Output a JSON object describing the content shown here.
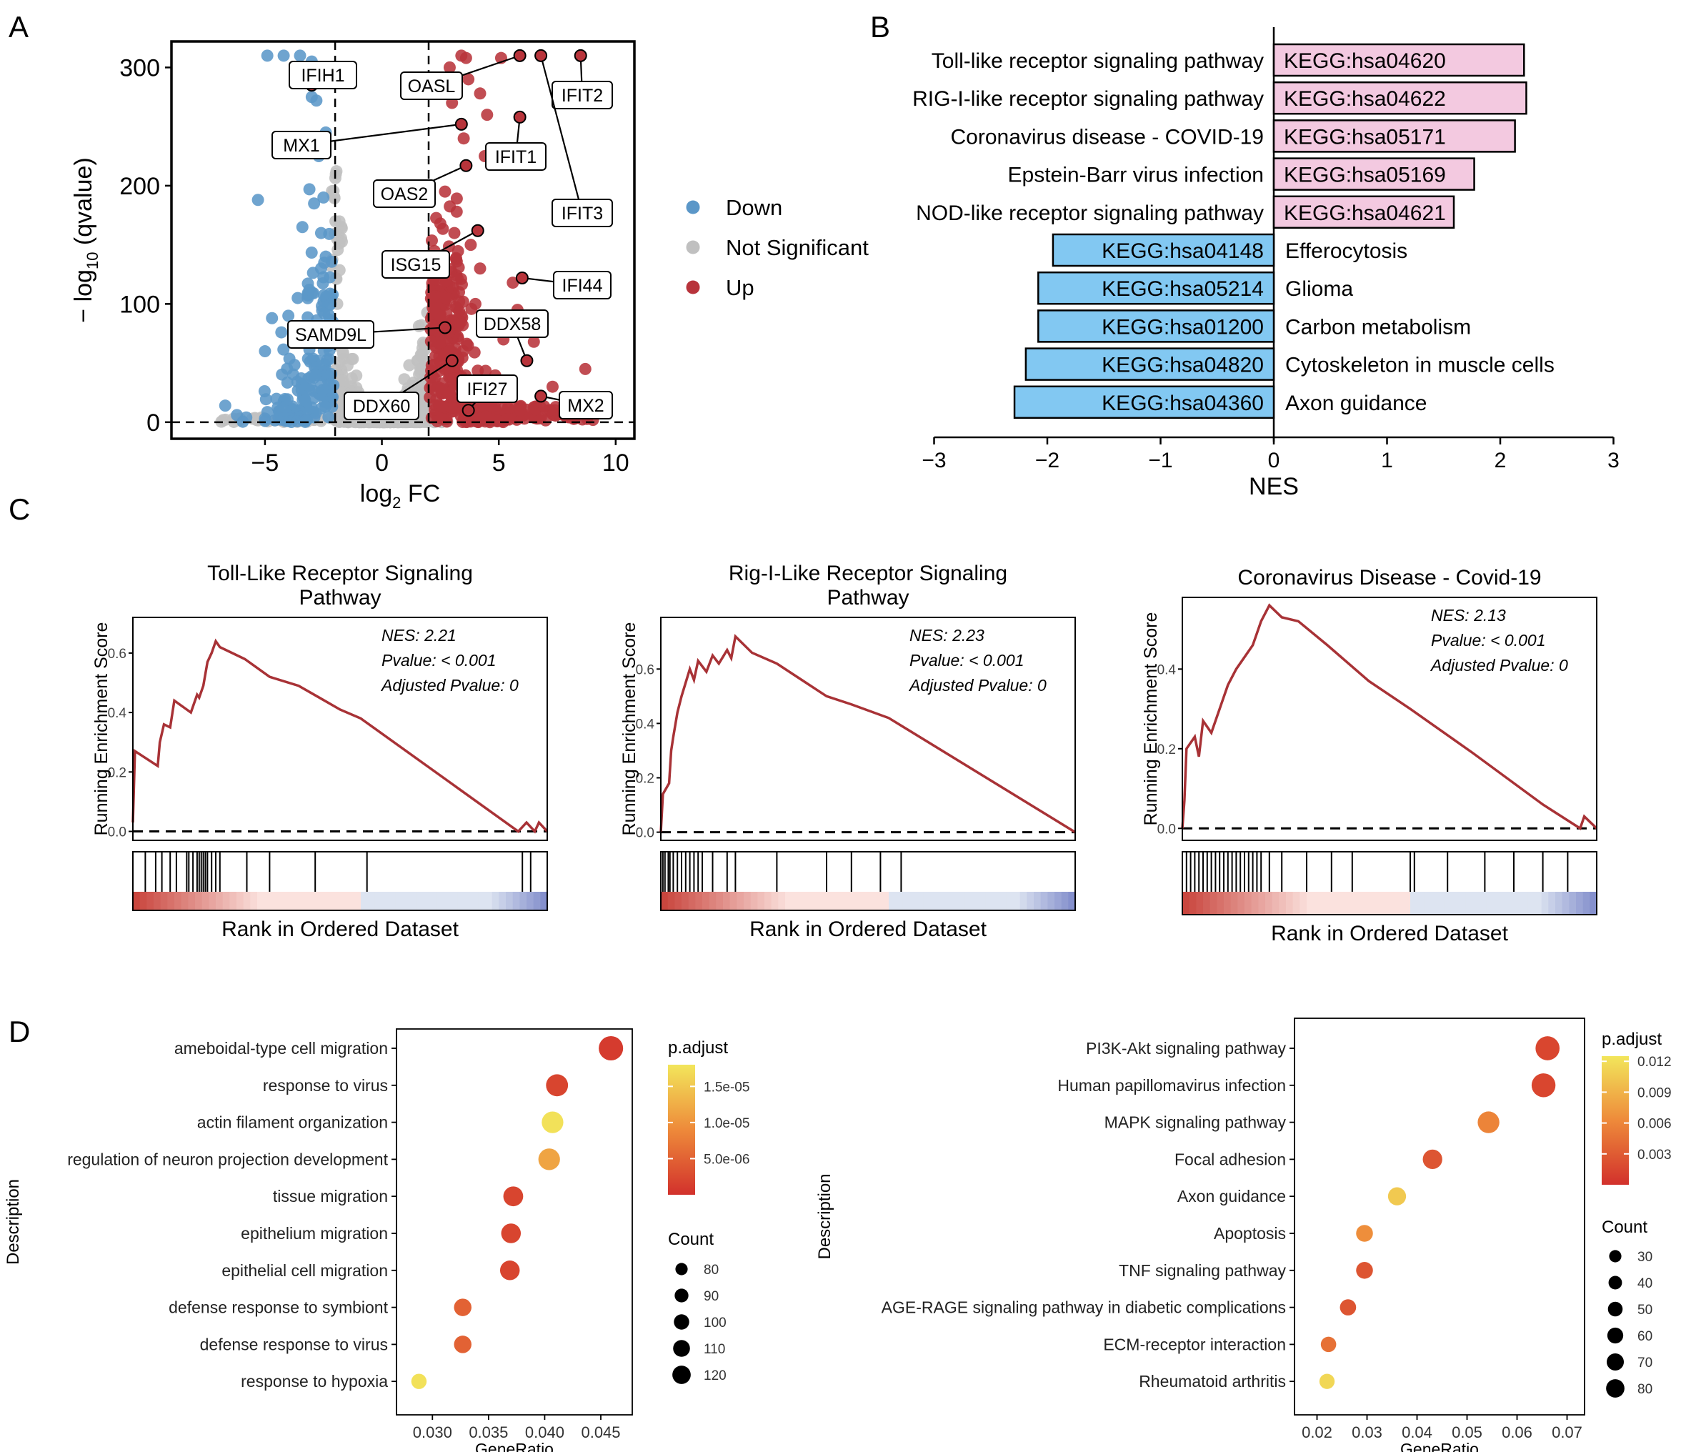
{
  "panel_labels": [
    "A",
    "B",
    "C",
    "D"
  ],
  "colors": {
    "down": "#5b97c8",
    "ns": "#c0c0c0",
    "up": "#b8343b",
    "kegg_pos": "#f3c9e0",
    "kegg_neg": "#82c8f2",
    "gsea_line": "#a83236",
    "heat_red": "#d2312c",
    "heat_yellow": "#f2e65b"
  },
  "chart_data": [
    {
      "id": "A",
      "type": "scatter",
      "xlabel": "log2 FC",
      "xlabel_base": "log",
      "xlabel_sub": "2",
      "xlabel_tail": " FC",
      "ylabel": "−log10 (qvalue)",
      "ylabel_head": "− log",
      "ylabel_sub": "10",
      "ylabel_tail": " (qvalue)",
      "xlim": [
        -9,
        10.8
      ],
      "ylim": [
        -14,
        322
      ],
      "xticks": [
        -5,
        0,
        5,
        10
      ],
      "yticks": [
        0,
        100,
        200,
        300
      ],
      "thresholds": {
        "x": [
          -2,
          2
        ],
        "y": 0
      },
      "legend": [
        {
          "key": "down",
          "label": "Down"
        },
        {
          "key": "ns",
          "label": "Not Significant"
        },
        {
          "key": "up",
          "label": "Up"
        }
      ],
      "labeled_points": [
        {
          "gene": "IFIH1",
          "x": -3.0,
          "y": 285
        },
        {
          "gene": "OASL",
          "x": 5.9,
          "y": 310
        },
        {
          "gene": "IFIT2",
          "x": 8.5,
          "y": 310
        },
        {
          "gene": "MX1",
          "x": 3.4,
          "y": 252
        },
        {
          "gene": "IFIT1",
          "x": 5.9,
          "y": 258
        },
        {
          "gene": "OAS2",
          "x": 3.6,
          "y": 217
        },
        {
          "gene": "IFIT3",
          "x": 6.8,
          "y": 310
        },
        {
          "gene": "ISG15",
          "x": 4.1,
          "y": 162
        },
        {
          "gene": "IFI44",
          "x": 6.0,
          "y": 122
        },
        {
          "gene": "SAMD9L",
          "x": 2.7,
          "y": 80
        },
        {
          "gene": "DDX58",
          "x": 6.2,
          "y": 52
        },
        {
          "gene": "DDX60",
          "x": 3.0,
          "y": 52
        },
        {
          "gene": "IFI27",
          "x": 3.7,
          "y": 10
        },
        {
          "gene": "MX2",
          "x": 6.8,
          "y": 22
        }
      ]
    },
    {
      "id": "B",
      "type": "bar",
      "xlabel": "NES",
      "xlim": [
        -3,
        3
      ],
      "xticks": [
        -3,
        -2,
        -1,
        0,
        1,
        2,
        3
      ],
      "bars": [
        {
          "pathway": "Toll-like receptor signaling pathway",
          "id": "KEGG:hsa04620",
          "nes": 2.21
        },
        {
          "pathway": "RIG-I-like receptor signaling pathway",
          "id": "KEGG:hsa04622",
          "nes": 2.23
        },
        {
          "pathway": "Coronavirus disease - COVID-19",
          "id": "KEGG:hsa05171",
          "nes": 2.13
        },
        {
          "pathway": "Epstein-Barr virus infection",
          "id": "KEGG:hsa05169",
          "nes": 1.77
        },
        {
          "pathway": "NOD-like receptor signaling pathway",
          "id": "KEGG:hsa04621",
          "nes": 1.59
        },
        {
          "pathway": "Efferocytosis",
          "id": "KEGG:hsa04148",
          "nes": -1.95
        },
        {
          "pathway": "Glioma",
          "id": "KEGG:hsa05214",
          "nes": -2.08
        },
        {
          "pathway": "Carbon metabolism",
          "id": "KEGG:hsa01200",
          "nes": -2.08
        },
        {
          "pathway": "Cytoskeleton in muscle cells",
          "id": "KEGG:hsa04820",
          "nes": -2.19
        },
        {
          "pathway": "Axon guidance",
          "id": "KEGG:hsa04360",
          "nes": -2.29
        }
      ]
    },
    {
      "id": "C1",
      "type": "line",
      "title": [
        "Toll-Like Receptor Signaling",
        "Pathway"
      ],
      "ylabel": "Running Enrichment Score",
      "xlabel": "Rank in Ordered Dataset",
      "ylim": [
        -0.03,
        0.72
      ],
      "yticks": [
        0.0,
        0.2,
        0.4,
        0.6
      ],
      "stats": [
        "NES: 2.21",
        "Pvalue: < 0.001",
        "Adjusted Pvalue: 0"
      ],
      "curve": [
        [
          0,
          0.03
        ],
        [
          0.005,
          0.27
        ],
        [
          0.06,
          0.22
        ],
        [
          0.065,
          0.3
        ],
        [
          0.075,
          0.36
        ],
        [
          0.09,
          0.35
        ],
        [
          0.1,
          0.44
        ],
        [
          0.14,
          0.4
        ],
        [
          0.155,
          0.46
        ],
        [
          0.16,
          0.45
        ],
        [
          0.17,
          0.49
        ],
        [
          0.175,
          0.53
        ],
        [
          0.18,
          0.57
        ],
        [
          0.19,
          0.6
        ],
        [
          0.2,
          0.64
        ],
        [
          0.21,
          0.62
        ],
        [
          0.27,
          0.58
        ],
        [
          0.33,
          0.52
        ],
        [
          0.4,
          0.49
        ],
        [
          0.45,
          0.45
        ],
        [
          0.5,
          0.41
        ],
        [
          0.55,
          0.38
        ],
        [
          0.93,
          0.0
        ],
        [
          0.95,
          0.03
        ],
        [
          0.97,
          0.0
        ],
        [
          0.98,
          0.03
        ],
        [
          1.0,
          0.0
        ]
      ],
      "hits": [
        0.03,
        0.055,
        0.07,
        0.09,
        0.105,
        0.13,
        0.135,
        0.145,
        0.155,
        0.16,
        0.165,
        0.17,
        0.175,
        0.18,
        0.19,
        0.2,
        0.21,
        0.275,
        0.33,
        0.44,
        0.565,
        0.94,
        0.96
      ]
    },
    {
      "id": "C2",
      "type": "line",
      "title": [
        "Rig-I-Like Receptor Signaling",
        "Pathway"
      ],
      "ylabel": "Running Enrichment Score",
      "xlabel": "Rank in Ordered Dataset",
      "ylim": [
        -0.03,
        0.79
      ],
      "yticks": [
        0.0,
        0.2,
        0.4,
        0.6
      ],
      "stats": [
        "NES: 2.23",
        "Pvalue: < 0.001",
        "Adjusted Pvalue: 0"
      ],
      "curve": [
        [
          0,
          0.0
        ],
        [
          0.005,
          0.14
        ],
        [
          0.02,
          0.18
        ],
        [
          0.025,
          0.3
        ],
        [
          0.03,
          0.35
        ],
        [
          0.04,
          0.44
        ],
        [
          0.05,
          0.5
        ],
        [
          0.06,
          0.55
        ],
        [
          0.07,
          0.6
        ],
        [
          0.08,
          0.56
        ],
        [
          0.09,
          0.63
        ],
        [
          0.11,
          0.59
        ],
        [
          0.125,
          0.65
        ],
        [
          0.14,
          0.62
        ],
        [
          0.16,
          0.67
        ],
        [
          0.17,
          0.64
        ],
        [
          0.18,
          0.72
        ],
        [
          0.22,
          0.66
        ],
        [
          0.28,
          0.62
        ],
        [
          0.34,
          0.56
        ],
        [
          0.4,
          0.5
        ],
        [
          0.46,
          0.47
        ],
        [
          0.55,
          0.42
        ],
        [
          1.0,
          0.0
        ]
      ],
      "hits": [
        0.005,
        0.01,
        0.018,
        0.022,
        0.03,
        0.04,
        0.05,
        0.06,
        0.07,
        0.08,
        0.09,
        0.1,
        0.125,
        0.16,
        0.18,
        0.28,
        0.4,
        0.46,
        0.53,
        0.58
      ]
    },
    {
      "id": "C3",
      "type": "line",
      "title": [
        "Coronavirus Disease - Covid-19"
      ],
      "ylabel": "Running Enrichment Score",
      "xlabel": "Rank in Ordered Dataset",
      "ylim": [
        -0.03,
        0.58
      ],
      "yticks": [
        0.0,
        0.2,
        0.4
      ],
      "stats": [
        "NES: 2.13",
        "Pvalue: < 0.001",
        "Adjusted Pvalue: 0"
      ],
      "curve": [
        [
          0,
          0.0
        ],
        [
          0.005,
          0.07
        ],
        [
          0.01,
          0.2
        ],
        [
          0.03,
          0.23
        ],
        [
          0.04,
          0.18
        ],
        [
          0.05,
          0.27
        ],
        [
          0.07,
          0.24
        ],
        [
          0.09,
          0.3
        ],
        [
          0.1,
          0.33
        ],
        [
          0.11,
          0.36
        ],
        [
          0.13,
          0.4
        ],
        [
          0.15,
          0.43
        ],
        [
          0.17,
          0.46
        ],
        [
          0.18,
          0.49
        ],
        [
          0.19,
          0.52
        ],
        [
          0.2,
          0.54
        ],
        [
          0.21,
          0.56
        ],
        [
          0.24,
          0.53
        ],
        [
          0.28,
          0.52
        ],
        [
          0.35,
          0.46
        ],
        [
          0.45,
          0.37
        ],
        [
          0.55,
          0.3
        ],
        [
          0.7,
          0.19
        ],
        [
          0.87,
          0.06
        ],
        [
          0.9,
          0.04
        ],
        [
          0.96,
          0.0
        ],
        [
          0.97,
          0.03
        ],
        [
          1.0,
          0.0
        ]
      ],
      "hits": [
        0.01,
        0.02,
        0.03,
        0.04,
        0.05,
        0.06,
        0.07,
        0.08,
        0.09,
        0.1,
        0.11,
        0.12,
        0.13,
        0.14,
        0.15,
        0.16,
        0.17,
        0.18,
        0.19,
        0.21,
        0.24,
        0.3,
        0.36,
        0.41,
        0.55,
        0.56,
        0.64,
        0.73,
        0.8,
        0.87,
        0.93
      ]
    },
    {
      "id": "D1",
      "type": "scatter",
      "ylabel": "Description",
      "xlabel": "GeneRatio",
      "xlim": [
        0.0268,
        0.0478
      ],
      "xticks": [
        0.03,
        0.035,
        0.04,
        0.045
      ],
      "xtick_labels": [
        "0.030",
        "0.035",
        "0.040",
        "0.045"
      ],
      "color_legend": {
        "title": "p.adjust",
        "min": 0,
        "max": 1.8e-05,
        "ticks": [
          5e-06,
          1e-05,
          1.5e-05
        ],
        "tick_labels": [
          "5.0e-06",
          "1.0e-05",
          "1.5e-05"
        ]
      },
      "size_legend": {
        "title": "Count",
        "values": [
          80,
          90,
          100,
          110,
          120
        ]
      },
      "points": [
        {
          "term": "ameboidal-type cell migration",
          "ratio": 0.0459,
          "count": 124,
          "padj": 1e-06
        },
        {
          "term": "response to virus",
          "ratio": 0.0411,
          "count": 112,
          "padj": 2e-06
        },
        {
          "term": "actin filament organization",
          "ratio": 0.0407,
          "count": 110,
          "padj": 1.75e-05
        },
        {
          "term": "regulation of neuron projection development",
          "ratio": 0.0404,
          "count": 110,
          "padj": 1.15e-05
        },
        {
          "term": "tissue migration",
          "ratio": 0.0372,
          "count": 101,
          "padj": 2e-06
        },
        {
          "term": "epithelium migration",
          "ratio": 0.037,
          "count": 100,
          "padj": 2e-06
        },
        {
          "term": "epithelial cell migration",
          "ratio": 0.0369,
          "count": 100,
          "padj": 2e-06
        },
        {
          "term": "defense response to symbiont",
          "ratio": 0.0327,
          "count": 89,
          "padj": 5e-06
        },
        {
          "term": "defense response to virus",
          "ratio": 0.0327,
          "count": 89,
          "padj": 5e-06
        },
        {
          "term": "response to hypoxia",
          "ratio": 0.0288,
          "count": 78,
          "padj": 1.75e-05
        }
      ]
    },
    {
      "id": "D2",
      "type": "scatter",
      "ylabel": "Description",
      "xlabel": "GeneRatio",
      "xlim": [
        0.0155,
        0.0735
      ],
      "xticks": [
        0.02,
        0.03,
        0.04,
        0.05,
        0.06,
        0.07
      ],
      "xtick_labels": [
        "0.02",
        "0.03",
        "0.04",
        "0.05",
        "0.06",
        "0.07"
      ],
      "color_legend": {
        "title": "p.adjust",
        "min": 0,
        "max": 0.0125,
        "ticks": [
          0.003,
          0.006,
          0.009,
          0.012
        ],
        "tick_labels": [
          "0.003",
          "0.006",
          "0.009",
          "0.012"
        ]
      },
      "size_legend": {
        "title": "Count",
        "values": [
          30,
          40,
          50,
          60,
          70,
          80
        ]
      },
      "points": [
        {
          "term": "PI3K-Akt signaling pathway",
          "ratio": 0.0661,
          "count": 83,
          "padj": 0.0015
        },
        {
          "term": "Human papillomavirus infection",
          "ratio": 0.0653,
          "count": 82,
          "padj": 0.0015
        },
        {
          "term": "MAPK signaling pathway",
          "ratio": 0.0543,
          "count": 68,
          "padj": 0.0058
        },
        {
          "term": "Focal adhesion",
          "ratio": 0.0431,
          "count": 54,
          "padj": 0.0025
        },
        {
          "term": "Axon guidance",
          "ratio": 0.036,
          "count": 45,
          "padj": 0.0105
        },
        {
          "term": "Apoptosis",
          "ratio": 0.0295,
          "count": 37,
          "padj": 0.0065
        },
        {
          "term": "TNF signaling pathway",
          "ratio": 0.0295,
          "count": 37,
          "padj": 0.0025
        },
        {
          "term": "AGE-RAGE signaling pathway in diabetic complications",
          "ratio": 0.0262,
          "count": 33,
          "padj": 0.0025
        },
        {
          "term": "ECM-receptor interaction",
          "ratio": 0.0223,
          "count": 28,
          "padj": 0.0045
        },
        {
          "term": "Rheumatoid arthritis",
          "ratio": 0.022,
          "count": 27,
          "padj": 0.0115
        }
      ]
    }
  ]
}
